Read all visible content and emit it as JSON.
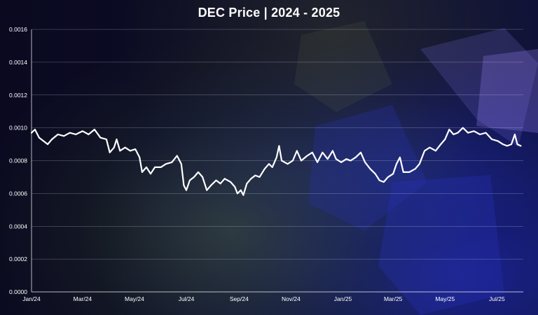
{
  "chart_data": {
    "type": "line",
    "title": "DEC Price  |  2024 - 2025",
    "xlabel": "",
    "ylabel": "",
    "ylim": [
      0,
      0.0016
    ],
    "xlim": [
      "2024-01-01",
      "2025-08-01"
    ],
    "y_ticks": [
      "0.0000",
      "0.0002",
      "0.0004",
      "0.0006",
      "0.0008",
      "0.0010",
      "0.0012",
      "0.0014",
      "0.0016"
    ],
    "x_ticks": [
      "Jan/24",
      "Mar/24",
      "May/24",
      "Jul/24",
      "Sep/24",
      "Nov/24",
      "Jan/25",
      "Mar/25",
      "May/25",
      "Jul/25"
    ],
    "grid": "horizontal",
    "legend": "none",
    "line_color": "#ffffff",
    "series": [
      {
        "points": [
          [
            "2024-01-01",
            0.00097
          ],
          [
            "2024-01-05",
            0.00099
          ],
          [
            "2024-01-10",
            0.00094
          ],
          [
            "2024-01-15",
            0.00092
          ],
          [
            "2024-01-20",
            0.0009
          ],
          [
            "2024-01-25",
            0.00093
          ],
          [
            "2024-02-01",
            0.00096
          ],
          [
            "2024-02-08",
            0.00095
          ],
          [
            "2024-02-15",
            0.00097
          ],
          [
            "2024-02-22",
            0.00096
          ],
          [
            "2024-03-01",
            0.00098
          ],
          [
            "2024-03-08",
            0.00096
          ],
          [
            "2024-03-15",
            0.00099
          ],
          [
            "2024-03-22",
            0.00094
          ],
          [
            "2024-03-29",
            0.00093
          ],
          [
            "2024-04-02",
            0.00085
          ],
          [
            "2024-04-07",
            0.00088
          ],
          [
            "2024-04-10",
            0.00093
          ],
          [
            "2024-04-14",
            0.00086
          ],
          [
            "2024-04-20",
            0.00088
          ],
          [
            "2024-04-26",
            0.00086
          ],
          [
            "2024-05-02",
            0.00087
          ],
          [
            "2024-05-07",
            0.00082
          ],
          [
            "2024-05-10",
            0.00073
          ],
          [
            "2024-05-15",
            0.00076
          ],
          [
            "2024-05-20",
            0.00072
          ],
          [
            "2024-05-25",
            0.00076
          ],
          [
            "2024-06-01",
            0.00076
          ],
          [
            "2024-06-07",
            0.00078
          ],
          [
            "2024-06-14",
            0.00079
          ],
          [
            "2024-06-20",
            0.00083
          ],
          [
            "2024-06-25",
            0.00078
          ],
          [
            "2024-06-28",
            0.00065
          ],
          [
            "2024-07-01",
            0.00062
          ],
          [
            "2024-07-05",
            0.00068
          ],
          [
            "2024-07-10",
            0.0007
          ],
          [
            "2024-07-15",
            0.00073
          ],
          [
            "2024-07-20",
            0.0007
          ],
          [
            "2024-07-25",
            0.00062
          ],
          [
            "2024-07-30",
            0.00065
          ],
          [
            "2024-08-05",
            0.00068
          ],
          [
            "2024-08-10",
            0.00066
          ],
          [
            "2024-08-15",
            0.00069
          ],
          [
            "2024-08-22",
            0.00067
          ],
          [
            "2024-08-27",
            0.00064
          ],
          [
            "2024-08-30",
            0.0006
          ],
          [
            "2024-09-03",
            0.00062
          ],
          [
            "2024-09-06",
            0.00059
          ],
          [
            "2024-09-10",
            0.00066
          ],
          [
            "2024-09-15",
            0.00069
          ],
          [
            "2024-09-20",
            0.00071
          ],
          [
            "2024-09-25",
            0.0007
          ],
          [
            "2024-10-01",
            0.00075
          ],
          [
            "2024-10-06",
            0.00078
          ],
          [
            "2024-10-10",
            0.00076
          ],
          [
            "2024-10-15",
            0.00082
          ],
          [
            "2024-10-18",
            0.00089
          ],
          [
            "2024-10-21",
            0.0008
          ],
          [
            "2024-10-28",
            0.00078
          ],
          [
            "2024-11-03",
            0.0008
          ],
          [
            "2024-11-08",
            0.00086
          ],
          [
            "2024-11-13",
            0.0008
          ],
          [
            "2024-11-20",
            0.00083
          ],
          [
            "2024-11-26",
            0.00085
          ],
          [
            "2024-12-02",
            0.00079
          ],
          [
            "2024-12-08",
            0.00085
          ],
          [
            "2024-12-14",
            0.00081
          ],
          [
            "2024-12-20",
            0.00086
          ],
          [
            "2024-12-24",
            0.00081
          ],
          [
            "2024-12-30",
            0.00079
          ],
          [
            "2025-01-05",
            0.00081
          ],
          [
            "2025-01-10",
            0.0008
          ],
          [
            "2025-01-16",
            0.00082
          ],
          [
            "2025-01-22",
            0.00085
          ],
          [
            "2025-01-27",
            0.00079
          ],
          [
            "2025-02-02",
            0.00075
          ],
          [
            "2025-02-08",
            0.00072
          ],
          [
            "2025-02-13",
            0.00068
          ],
          [
            "2025-02-18",
            0.00067
          ],
          [
            "2025-02-23",
            0.0007
          ],
          [
            "2025-03-01",
            0.00072
          ],
          [
            "2025-03-05",
            0.00078
          ],
          [
            "2025-03-09",
            0.00082
          ],
          [
            "2025-03-13",
            0.00073
          ],
          [
            "2025-03-20",
            0.00073
          ],
          [
            "2025-03-27",
            0.00075
          ],
          [
            "2025-04-01",
            0.00078
          ],
          [
            "2025-04-07",
            0.00086
          ],
          [
            "2025-04-13",
            0.00088
          ],
          [
            "2025-04-20",
            0.00086
          ],
          [
            "2025-04-26",
            0.0009
          ],
          [
            "2025-05-01",
            0.00093
          ],
          [
            "2025-05-06",
            0.00099
          ],
          [
            "2025-05-11",
            0.00096
          ],
          [
            "2025-05-16",
            0.00097
          ],
          [
            "2025-05-22",
            0.001
          ],
          [
            "2025-05-28",
            0.00097
          ],
          [
            "2025-06-04",
            0.00098
          ],
          [
            "2025-06-11",
            0.00096
          ],
          [
            "2025-06-18",
            0.00097
          ],
          [
            "2025-06-25",
            0.00093
          ],
          [
            "2025-07-02",
            0.00092
          ],
          [
            "2025-07-08",
            0.0009
          ],
          [
            "2025-07-13",
            0.00089
          ],
          [
            "2025-07-18",
            0.0009
          ],
          [
            "2025-07-22",
            0.00096
          ],
          [
            "2025-07-25",
            0.0009
          ],
          [
            "2025-07-29",
            0.00089
          ]
        ]
      }
    ]
  }
}
